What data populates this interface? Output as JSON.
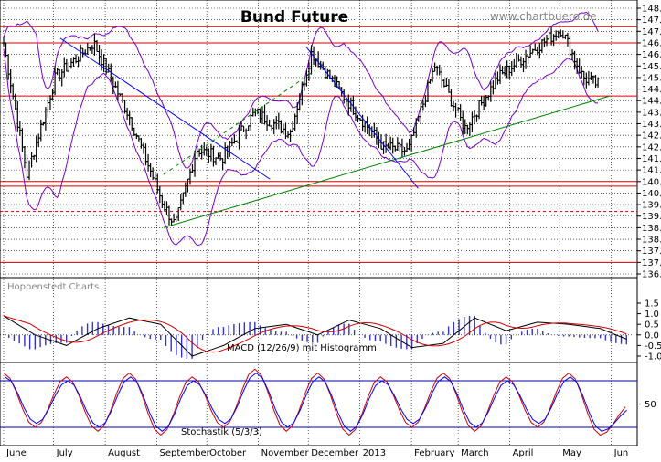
{
  "chart_data": [
    {
      "type": "line",
      "title": "Bund Future",
      "source": "www.chartbuero.de",
      "y_axis": {
        "range": [
          136.5,
          148.0
        ],
        "ticks": [
          "148.0",
          "147.5",
          "147.0",
          "146.5",
          "146.0",
          "145.5",
          "145.0",
          "144.5",
          "144.0",
          "143.5",
          "143.0",
          "142.5",
          "142.0",
          "141.5",
          "141.0",
          "140.5",
          "140.0",
          "139.5",
          "139.0",
          "138.5",
          "138.0",
          "137.5",
          "137.0",
          "136.5"
        ]
      },
      "x_labels": [
        "June",
        "July",
        "August",
        "September",
        "October",
        "November",
        "December",
        "2013",
        "February",
        "March",
        "April",
        "May",
        "Jun"
      ],
      "series": [
        {
          "name": "Price",
          "x": [
            "2012-06-01",
            "2012-06-15",
            "2012-07-02",
            "2012-07-25",
            "2012-08-15",
            "2012-09-05",
            "2012-09-12",
            "2012-09-25",
            "2012-10-10",
            "2012-10-30",
            "2012-11-20",
            "2012-12-03",
            "2012-12-20",
            "2013-01-15",
            "2013-01-30",
            "2013-02-15",
            "2013-03-05",
            "2013-03-25",
            "2013-04-15",
            "2013-05-02",
            "2013-05-15",
            "2013-05-24"
          ],
          "values": [
            146.5,
            140.8,
            145.0,
            146.5,
            143.4,
            139.5,
            138.6,
            141.9,
            141.5,
            143.5,
            142.6,
            146.1,
            144.4,
            142.0,
            141.8,
            145.5,
            142.8,
            145.0,
            146.2,
            147.1,
            145.0,
            144.7
          ]
        }
      ],
      "horizontal_lines": [
        147.2,
        146.5,
        144.2,
        140.5,
        140.3,
        139.2,
        137.0
      ],
      "trendlines": [
        {
          "color": "#008000",
          "from": [
            "2012-09-05",
            138.5
          ],
          "to": [
            "2013-05-31",
            144.2
          ]
        },
        {
          "color": "#0000ff",
          "from": [
            "2012-07-05",
            146.7
          ],
          "to": [
            "2012-11-08",
            140.6
          ]
        },
        {
          "color": "#0000ff",
          "from": [
            "2012-11-30",
            146.3
          ],
          "to": [
            "2013-02-05",
            140.2
          ]
        }
      ]
    },
    {
      "type": "line",
      "title": "MACD (12/26/9) mit Histogramm",
      "watermark": "Hoppenstedt Charts",
      "y_axis": {
        "range": [
          -1.0,
          1.0
        ],
        "ticks": [
          "1.5",
          "1.0",
          "0.5",
          "0.0",
          "-0.5",
          "-1.0"
        ]
      },
      "series": [
        {
          "name": "MACD",
          "values": [
            0.9,
            0.0,
            -0.5,
            0.3,
            0.8,
            0.5,
            -1.0,
            -0.5,
            0.3,
            0.5,
            0.0,
            0.7,
            0.3,
            -0.6,
            -0.4,
            0.8,
            0.2,
            0.6,
            0.5,
            0.3,
            -0.3
          ]
        }
      ]
    },
    {
      "type": "line",
      "title": "Stochastik (5/3/3)",
      "y_axis": {
        "ticks": [
          "50"
        ],
        "reference_lines": [
          80,
          20
        ]
      },
      "series": [
        {
          "name": "%K",
          "values": [
            90,
            20,
            85,
            15,
            90,
            10,
            85,
            20,
            95,
            15,
            90,
            10,
            85,
            20,
            90,
            15,
            85,
            20,
            90,
            10,
            50
          ]
        },
        {
          "name": "%D",
          "values": [
            85,
            25,
            80,
            20,
            85,
            15,
            80,
            25,
            90,
            20,
            85,
            15,
            80,
            25,
            85,
            20,
            80,
            25,
            85,
            15,
            45
          ]
        }
      ]
    }
  ]
}
